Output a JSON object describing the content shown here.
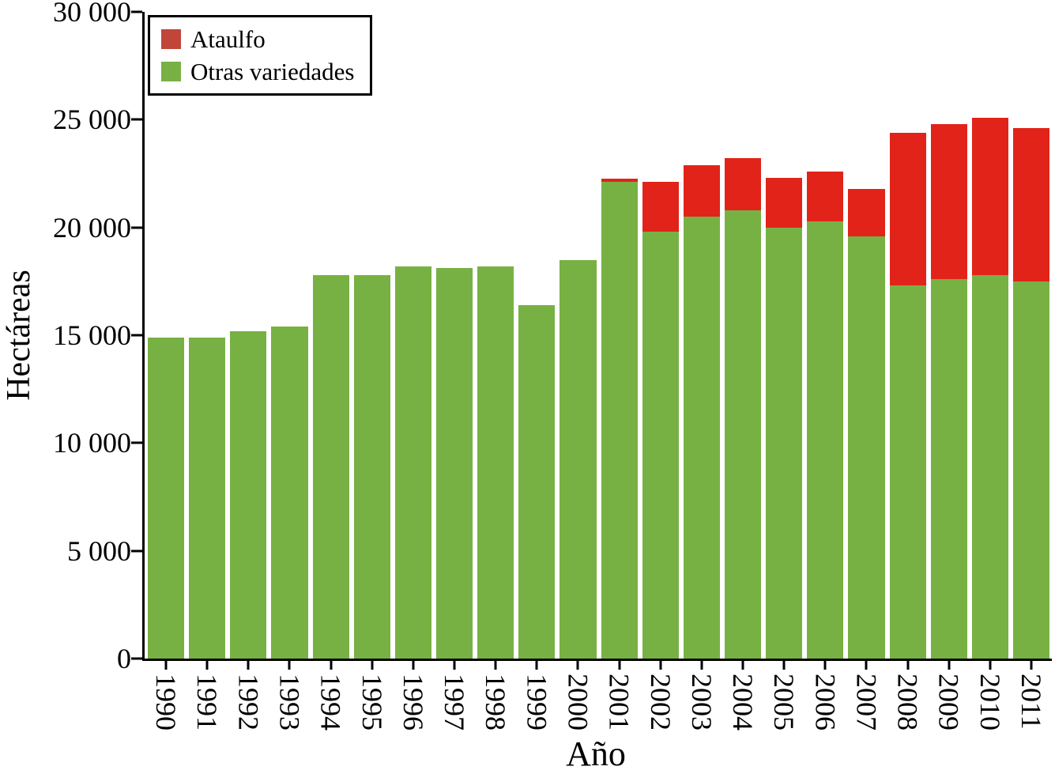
{
  "chart_data": {
    "type": "bar",
    "stacked": true,
    "title": "",
    "xlabel": "Año",
    "ylabel": "Hectáreas",
    "ylim": [
      0,
      30000
    ],
    "ytick_values": [
      0,
      5000,
      10000,
      15000,
      20000,
      25000,
      30000
    ],
    "ytick_labels": [
      "0",
      "5 000",
      "10 000",
      "15 000",
      "20 000",
      "25 000",
      "30 000"
    ],
    "categories": [
      "1990",
      "1991",
      "1992",
      "1993",
      "1994",
      "1995",
      "1996",
      "1997",
      "1998",
      "1999",
      "2000",
      "2001",
      "2002",
      "2003",
      "2004",
      "2005",
      "2006",
      "2007",
      "2008",
      "2009",
      "2010",
      "2011"
    ],
    "series": [
      {
        "name": "Ataulfo",
        "color": "#e2231a",
        "values": [
          0,
          0,
          0,
          0,
          0,
          0,
          0,
          0,
          0,
          0,
          0,
          150,
          2300,
          2400,
          2400,
          2300,
          2300,
          2200,
          7100,
          7200,
          7300,
          7100
        ]
      },
      {
        "name": "Otras variedades",
        "color": "#77b143",
        "values": [
          14900,
          14900,
          15200,
          15400,
          17800,
          17800,
          18200,
          18100,
          18200,
          16400,
          18500,
          22100,
          19800,
          20500,
          20800,
          20000,
          20300,
          19600,
          17300,
          17600,
          17800,
          17500
        ]
      }
    ],
    "legend": {
      "position": "top-left",
      "entries": [
        {
          "label": "Ataulfo",
          "swatch_color": "#c2453a"
        },
        {
          "label": "Otras variedades",
          "swatch_color": "#77b143"
        }
      ]
    },
    "grid": false,
    "axis_color": "#000000"
  }
}
